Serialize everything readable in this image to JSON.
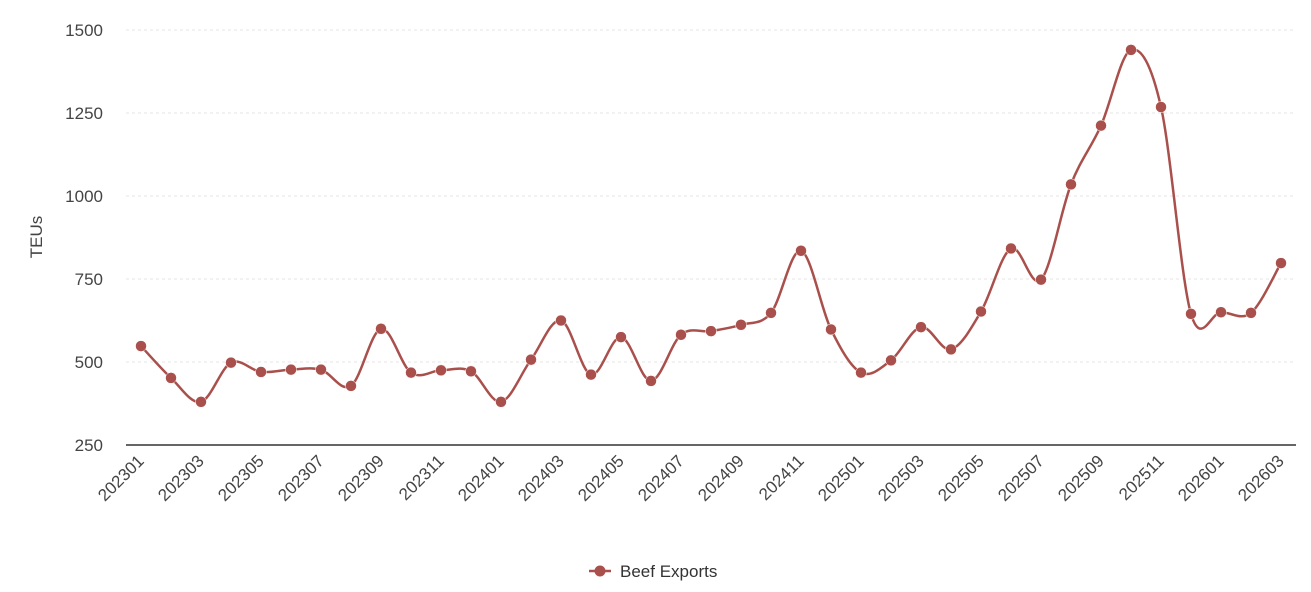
{
  "chart_data": {
    "type": "line",
    "title": "",
    "xlabel": "",
    "ylabel": "TEUs",
    "ylim": [
      250,
      1500
    ],
    "yticks": [
      250,
      500,
      750,
      1000,
      1250,
      1500
    ],
    "grid": true,
    "legend_position": "bottom-center",
    "x": [
      "202301",
      "202302",
      "202303",
      "202304",
      "202305",
      "202306",
      "202307",
      "202308",
      "202309",
      "202310",
      "202311",
      "202312",
      "202401",
      "202402",
      "202403",
      "202404",
      "202405",
      "202406",
      "202407",
      "202408",
      "202409",
      "202410",
      "202411",
      "202412",
      "202501",
      "202502",
      "202503",
      "202504",
      "202505",
      "202506",
      "202507",
      "202508",
      "202509",
      "202510",
      "202511",
      "202512",
      "202601",
      "202602",
      "202603"
    ],
    "x_tick_labels": [
      "202301",
      "202303",
      "202305",
      "202307",
      "202309",
      "202311",
      "202401",
      "202403",
      "202405",
      "202407",
      "202409",
      "202411",
      "202501",
      "202503",
      "202505",
      "202507",
      "202509",
      "202511",
      "202601",
      "202603"
    ],
    "series": [
      {
        "name": "Beef Exports",
        "color": "#a9504c",
        "values": [
          548,
          452,
          380,
          498,
          470,
          477,
          477,
          428,
          600,
          468,
          475,
          472,
          380,
          507,
          625,
          462,
          575,
          443,
          582,
          593,
          612,
          648,
          835,
          598,
          468,
          505,
          605,
          538,
          652,
          842,
          748,
          1035,
          1212,
          1440,
          1268,
          645,
          650,
          648,
          798
        ]
      }
    ]
  }
}
